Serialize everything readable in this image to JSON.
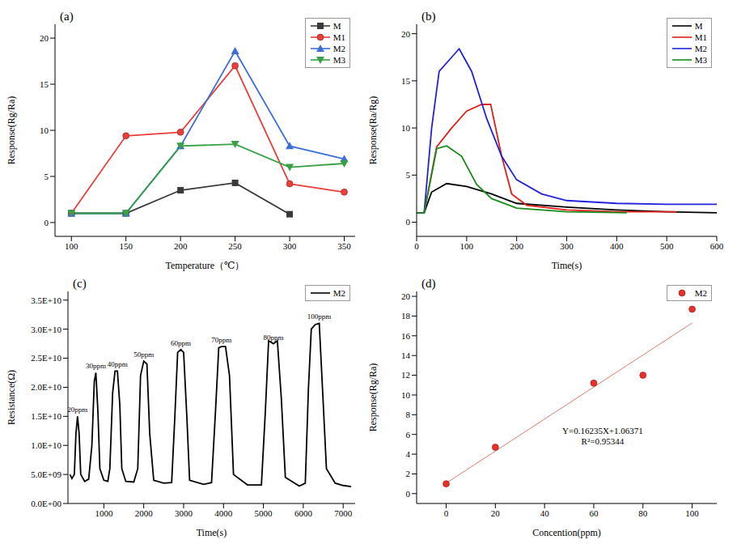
{
  "chart_data": [
    {
      "type": "line",
      "title": "(a)",
      "x_label": "Temperature（℃）",
      "y_label": "Response(Rg/Ra)",
      "xlim": [
        85,
        360
      ],
      "xticks": [
        100,
        150,
        200,
        250,
        300,
        350
      ],
      "ylim": [
        -1.5,
        21.5
      ],
      "yticks": [
        0,
        5,
        10,
        15,
        20
      ],
      "grid": false,
      "legend": "upper right",
      "series": [
        {
          "name": "M",
          "color": "#3a3a3a",
          "marker": "square",
          "x": [
            100,
            150,
            200,
            250,
            300
          ],
          "values": [
            1,
            1,
            3.5,
            4.3,
            0.9
          ]
        },
        {
          "name": "M1",
          "color": "#e8413c",
          "marker": "circle",
          "x": [
            100,
            150,
            200,
            250,
            300,
            350
          ],
          "values": [
            1,
            9.4,
            9.8,
            17,
            4.2,
            3.3
          ]
        },
        {
          "name": "M2",
          "color": "#3c6fd6",
          "marker": "triangle-up",
          "x": [
            100,
            150,
            200,
            250,
            300,
            350
          ],
          "values": [
            1,
            1,
            8.3,
            18.6,
            8.3,
            6.9
          ]
        },
        {
          "name": "M3",
          "color": "#3aa046",
          "marker": "triangle-down",
          "x": [
            100,
            150,
            200,
            250,
            300,
            350
          ],
          "values": [
            1,
            1,
            8.3,
            8.5,
            6,
            6.4
          ]
        }
      ]
    },
    {
      "type": "line",
      "title": "(b)",
      "x_label": "Time(s)",
      "y_label": "Response(Ra/Rg)",
      "xlim": [
        0,
        600
      ],
      "xticks": [
        0,
        100,
        200,
        300,
        400,
        500,
        600
      ],
      "ylim": [
        -1.5,
        21
      ],
      "yticks": [
        0,
        5,
        10,
        15,
        20
      ],
      "grid": false,
      "legend": "upper right",
      "series": [
        {
          "name": "M",
          "color": "#000000",
          "x": [
            0,
            15,
            30,
            60,
            100,
            150,
            200,
            300,
            400,
            500,
            600
          ],
          "values": [
            1,
            1,
            3.2,
            4.1,
            3.8,
            3,
            2,
            1.6,
            1.3,
            1.1,
            1
          ]
        },
        {
          "name": "M1",
          "color": "#e0201b",
          "x": [
            0,
            15,
            40,
            70,
            100,
            130,
            148,
            170,
            190,
            220,
            300,
            400,
            520
          ],
          "values": [
            1,
            1,
            8,
            10,
            11.8,
            12.5,
            12.5,
            7,
            3,
            1.8,
            1.3,
            1.1,
            1.1
          ]
        },
        {
          "name": "M2",
          "color": "#2222dd",
          "x": [
            0,
            15,
            30,
            45,
            70,
            85,
            110,
            140,
            170,
            200,
            250,
            300,
            400,
            500,
            600
          ],
          "values": [
            1,
            1,
            10,
            16,
            17.5,
            18.4,
            16,
            11,
            7,
            4.5,
            3,
            2.3,
            2,
            1.9,
            1.9
          ]
        },
        {
          "name": "M3",
          "color": "#1a8a1a",
          "x": [
            0,
            15,
            40,
            60,
            90,
            120,
            150,
            200,
            300,
            420
          ],
          "values": [
            1,
            1,
            7.8,
            8.1,
            7,
            4,
            2.5,
            1.5,
            1.1,
            1
          ]
        }
      ]
    },
    {
      "type": "line",
      "title": "(c)",
      "x_label": "Time(s)",
      "y_label": "Resistance(Ω)",
      "xlim": [
        100,
        7300
      ],
      "xticks": [
        1000,
        2000,
        3000,
        4000,
        5000,
        6000,
        7000
      ],
      "ylim": [
        0,
        36500000000.0
      ],
      "yticks": [
        {
          "value": 0,
          "label": "0.0E+00"
        },
        {
          "value": 5000000000.0,
          "label": "5.0E+09"
        },
        {
          "value": 10000000000.0,
          "label": "1.0E+10"
        },
        {
          "value": 15000000000.0,
          "label": "1.5E+10"
        },
        {
          "value": 20000000000.0,
          "label": "2.0E+10"
        },
        {
          "value": 25000000000.0,
          "label": "2.5E+10"
        },
        {
          "value": 30000000000.0,
          "label": "3.0E+10"
        },
        {
          "value": 35000000000.0,
          "label": "3.5E+10"
        }
      ],
      "grid": false,
      "legend": "upper right",
      "series": [
        {
          "name": "M2",
          "color": "#000000",
          "x": [
            150,
            200,
            260,
            300,
            340,
            380,
            420,
            520,
            620,
            700,
            760,
            800,
            850,
            900,
            1000,
            1100,
            1150,
            1220,
            1280,
            1340,
            1400,
            1450,
            1550,
            1750,
            1850,
            1920,
            2000,
            2080,
            2150,
            2250,
            2500,
            2700,
            2780,
            2850,
            2930,
            3000,
            3080,
            3150,
            3500,
            3700,
            3800,
            3880,
            3950,
            4050,
            4150,
            4250,
            4600,
            4950,
            5050,
            5130,
            5250,
            5350,
            5450,
            5550,
            5900,
            6050,
            6130,
            6200,
            6300,
            6400,
            6480,
            6580,
            6800,
            7000,
            7200
          ],
          "values": [
            5000000000.0,
            4300000000.0,
            5000000000.0,
            12000000000.0,
            15000000000.0,
            12000000000.0,
            5000000000.0,
            3800000000.0,
            4200000000.0,
            10000000000.0,
            21000000000.0,
            22500000000.0,
            16000000000.0,
            6000000000.0,
            4000000000.0,
            3800000000.0,
            6000000000.0,
            19000000000.0,
            22800000000.0,
            22800000000.0,
            17000000000.0,
            6000000000.0,
            3800000000.0,
            3700000000.0,
            6000000000.0,
            22000000000.0,
            24500000000.0,
            24000000000.0,
            12000000000.0,
            4000000000.0,
            3500000000.0,
            3600000000.0,
            15000000000.0,
            26000000000.0,
            26500000000.0,
            26000000000.0,
            15000000000.0,
            4000000000.0,
            3300000000.0,
            3600000000.0,
            16000000000.0,
            26800000000.0,
            27000000000.0,
            27000000000.0,
            22000000000.0,
            5000000000.0,
            3200000000.0,
            3200000000.0,
            16000000000.0,
            28000000000.0,
            27500000000.0,
            28000000000.0,
            18000000000.0,
            4500000000.0,
            3000000000.0,
            3500000000.0,
            20000000000.0,
            30000000000.0,
            30800000000.0,
            31000000000.0,
            20000000000.0,
            6000000000.0,
            3500000000.0,
            3100000000.0,
            2900000000.0
          ]
        }
      ],
      "annotations": [
        {
          "text": "20ppm",
          "x": 340,
          "y": 15000000000.0
        },
        {
          "text": "30ppm",
          "x": 800,
          "y": 22500000000.0
        },
        {
          "text": "40ppm",
          "x": 1340,
          "y": 22800000000.0
        },
        {
          "text": "50ppm",
          "x": 2000,
          "y": 24500000000.0
        },
        {
          "text": "60ppm",
          "x": 2930,
          "y": 26500000000.0
        },
        {
          "text": "70ppm",
          "x": 3950,
          "y": 27000000000.0
        },
        {
          "text": "80ppm",
          "x": 5250,
          "y": 27500000000.0
        },
        {
          "text": "100ppm",
          "x": 6400,
          "y": 31000000000.0
        }
      ]
    },
    {
      "type": "scatter",
      "title": "(d)",
      "x_label": "Concention(ppm)",
      "y_label": "Response(Rg/Ra)",
      "xlim": [
        -12,
        110
      ],
      "xticks": [
        0,
        20,
        40,
        60,
        80,
        100
      ],
      "ylim": [
        -1,
        20.5
      ],
      "yticks": [
        0,
        2,
        4,
        6,
        8,
        10,
        12,
        14,
        16,
        18,
        20
      ],
      "grid": false,
      "legend": "upper right",
      "series": [
        {
          "name": "M2",
          "color": "#e8302a",
          "marker": "circle",
          "x": [
            0,
            20,
            60,
            80,
            100
          ],
          "values": [
            1,
            4.7,
            11.2,
            12,
            18.7
          ]
        }
      ],
      "trendline": {
        "slope": 0.16235,
        "intercept": 1.06371,
        "x": [
          0,
          100
        ],
        "color": "#e07b6a"
      },
      "annotations": [
        "Y=0.16235X+1.06371",
        "R²=0.95344"
      ]
    }
  ]
}
